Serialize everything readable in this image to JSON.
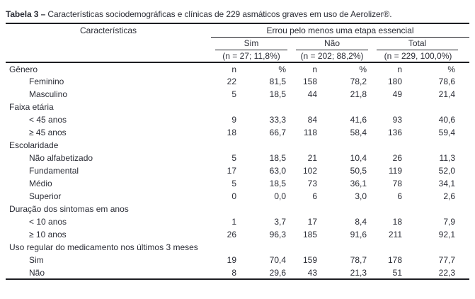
{
  "title": {
    "label": "Tabela 3 –",
    "text": "Características sociodemográficas e clínicas de 229 asmáticos graves em uso de Aerolizer®."
  },
  "table": {
    "characteristics_header": "Características",
    "group_header": "Errou pelo menos uma etapa essencial",
    "column_groups": [
      {
        "name": "Sim",
        "subtitle": "(n = 27; 11,8%)"
      },
      {
        "name": "Não",
        "subtitle": "(n = 202; 88,2%)"
      },
      {
        "name": "Total",
        "subtitle": "(n = 229, 100,0%)"
      }
    ],
    "count_label": "n",
    "percent_label": "%",
    "sections": [
      {
        "label": "Gênero",
        "rows": [
          {
            "label": "Feminino",
            "values": [
              "22",
              "81,5",
              "158",
              "78,2",
              "180",
              "78,6"
            ]
          },
          {
            "label": "Masculino",
            "values": [
              "5",
              "18,5",
              "44",
              "21,8",
              "49",
              "21,4"
            ]
          }
        ]
      },
      {
        "label": "Faixa etária",
        "rows": [
          {
            "label": "< 45 anos",
            "values": [
              "9",
              "33,3",
              "84",
              "41,6",
              "93",
              "40,6"
            ]
          },
          {
            "label": "≥ 45 anos",
            "values": [
              "18",
              "66,7",
              "118",
              "58,4",
              "136",
              "59,4"
            ]
          }
        ]
      },
      {
        "label": "Escolaridade",
        "rows": [
          {
            "label": "Não alfabetizado",
            "values": [
              "5",
              "18,5",
              "21",
              "10,4",
              "26",
              "11,3"
            ]
          },
          {
            "label": "Fundamental",
            "values": [
              "17",
              "63,0",
              "102",
              "50,5",
              "119",
              "52,0"
            ]
          },
          {
            "label": "Médio",
            "values": [
              "5",
              "18,5",
              "73",
              "36,1",
              "78",
              "34,1"
            ]
          },
          {
            "label": "Superior",
            "values": [
              "0",
              "0,0",
              "6",
              "3,0",
              "6",
              "2,6"
            ]
          }
        ]
      },
      {
        "label": "Duração dos sintomas em anos",
        "rows": [
          {
            "label": "< 10 anos",
            "values": [
              "1",
              "3,7",
              "17",
              "8,4",
              "18",
              "7,9"
            ]
          },
          {
            "label": "≥ 10 anos",
            "values": [
              "26",
              "96,3",
              "185",
              "91,6",
              "211",
              "92,1"
            ]
          }
        ]
      },
      {
        "label": "Uso regular do medicamento nos últimos 3 meses",
        "rows": [
          {
            "label": "Sim",
            "values": [
              "19",
              "70,4",
              "159",
              "78,7",
              "178",
              "77,7"
            ]
          },
          {
            "label": "Não",
            "values": [
              "8",
              "29,6",
              "43",
              "21,3",
              "51",
              "22,3"
            ]
          }
        ]
      }
    ]
  },
  "colors": {
    "text": "#2b2d36",
    "rule": "#1c1d22",
    "background": "#ffffff"
  }
}
